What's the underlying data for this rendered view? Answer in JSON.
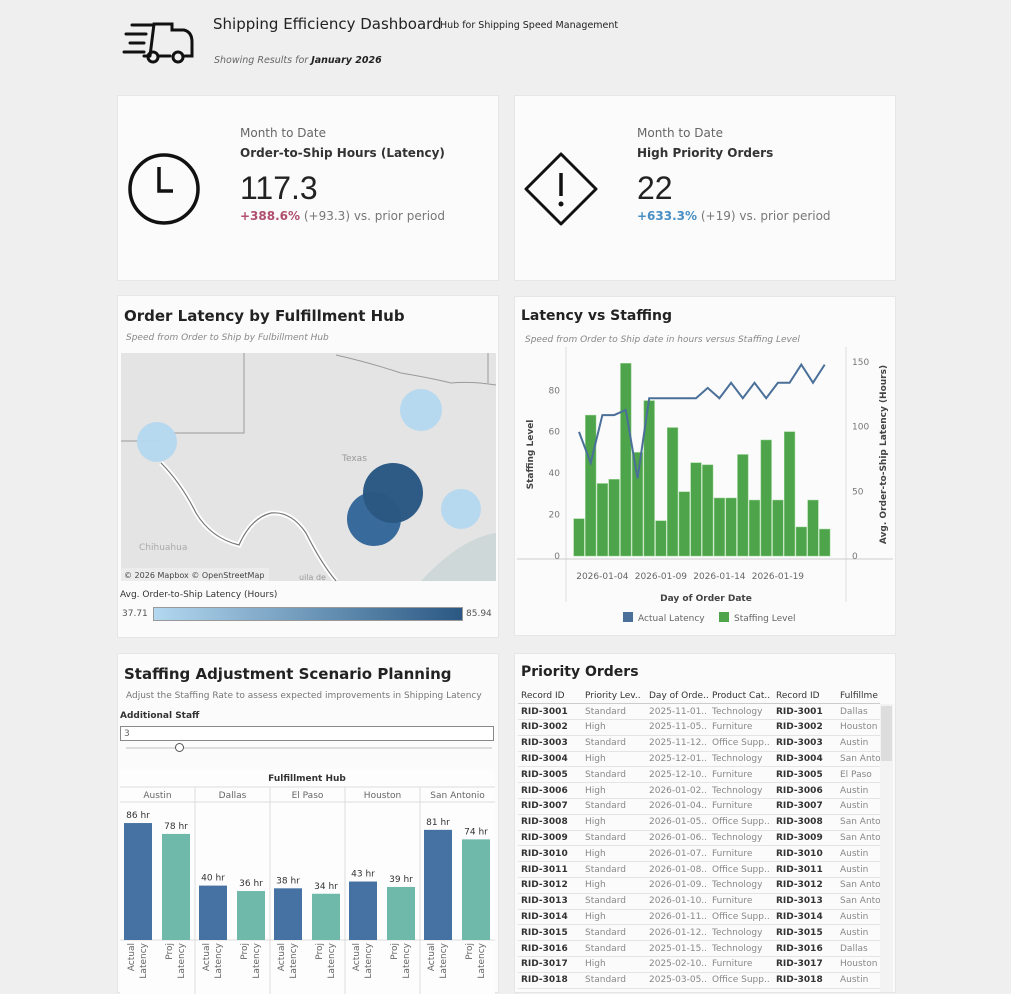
{
  "header": {
    "title": "Shipping Efficiency Dashboard",
    "subtitle": "Hub for Shipping Speed Management",
    "showing_prefix": "Showing Results for ",
    "showing_period": "January 2026",
    "icon": "delivery-truck-icon"
  },
  "kpis": [
    {
      "icon": "clock-icon",
      "caption": "Month to Date",
      "name": "Order-to-Ship Hours (Latency)",
      "value": "117.3",
      "delta_pct": "+388.6%",
      "delta_rest": " (+93.3) vs. prior period",
      "delta_color": "#b0506e"
    },
    {
      "icon": "warning-diamond-icon",
      "caption": "Month to Date",
      "name": "High Priority Orders",
      "value": "22",
      "delta_pct": "+633.3%",
      "delta_rest": " (+19) vs. prior period",
      "delta_color": "#4a8fc4"
    }
  ],
  "map": {
    "title": "Order Latency by Fulfillment Hub",
    "subtitle": "Speed from Order to Ship by Fulbillment Hub",
    "state_label": "Texas",
    "region_label": "Chihuahua",
    "region_label2": "uila de",
    "attribution": "© 2026 Mapbox  © OpenStreetMap",
    "legend_title": "Avg. Order-to-Ship Latency (Hours)",
    "legend_min": "37.71",
    "legend_max": "85.94",
    "color_low": "#b3d8f0",
    "color_high": "#2a5883"
  },
  "combo": {
    "title": "Latency vs Staffing",
    "subtitle": "Speed from Order to Ship date in hours versus Staffing Level"
  },
  "chart_data": [
    {
      "type": "bar+line",
      "xlabel": "Day of Order Date",
      "ylabel": "Staffing Level",
      "y2label": "Avg. Order-to-Ship Latency (Hours)",
      "ylim": [
        0,
        98
      ],
      "y2lim": [
        0,
        157
      ],
      "yticks": [
        0,
        20,
        40,
        60,
        80
      ],
      "y2ticks": [
        0,
        50,
        100,
        150
      ],
      "x_tick_labels": [
        "2026-01-04",
        "2026-01-09",
        "2026-01-14",
        "2026-01-19"
      ],
      "x": [
        "2026-01-02",
        "2026-01-03",
        "2026-01-04",
        "2026-01-05",
        "2026-01-06",
        "2026-01-07",
        "2026-01-08",
        "2026-01-09",
        "2026-01-10",
        "2026-01-11",
        "2026-01-12",
        "2026-01-13",
        "2026-01-14",
        "2026-01-15",
        "2026-01-16",
        "2026-01-17",
        "2026-01-18",
        "2026-01-19",
        "2026-01-20",
        "2026-01-21",
        "2026-01-22",
        "2026-01-23"
      ],
      "series": [
        {
          "name": "Staffing Level",
          "type": "bar",
          "color": "#4ea44a",
          "values": [
            18,
            68,
            35,
            37,
            93,
            50,
            75,
            17,
            62,
            31,
            45,
            44,
            28,
            28,
            49,
            27,
            56,
            27,
            60,
            14,
            27,
            13
          ]
        },
        {
          "name": "Actual Latency",
          "type": "line",
          "color": "#4a6f98",
          "values": [
            96,
            72,
            109,
            109,
            113,
            60,
            122,
            122,
            122,
            122,
            122,
            130,
            122,
            134,
            122,
            134,
            122,
            134,
            134,
            148,
            134,
            148
          ]
        }
      ],
      "legend": "bottom",
      "grid": false
    },
    {
      "type": "bar",
      "title": "Fulfillment Hub",
      "categories": [
        "Austin",
        "Dallas",
        "El Paso",
        "Houston",
        "San Antonio"
      ],
      "bar_labels": [
        "Actual Latency",
        "Proj Latency"
      ],
      "series": [
        {
          "name": "Actual Latency",
          "color": "#4672a3",
          "values": [
            86,
            40,
            38,
            43,
            81
          ]
        },
        {
          "name": "Proj Latency",
          "color": "#6fb9ab",
          "values": [
            78,
            36,
            34,
            39,
            74
          ]
        }
      ],
      "unit": "hr"
    }
  ],
  "scenario": {
    "title": "Staffing Adjustment Scenario Planning",
    "subtitle": "Adjust the Staffing Rate to assess expected improvements in Shipping Latency",
    "param_label": "Additional Staff",
    "param_value": "3",
    "slider_fraction": 0.16
  },
  "table": {
    "title": "Priority Orders",
    "columns": [
      "Record ID",
      "Priority Lev..",
      "Day of Orde..",
      "Product Cat..",
      "Record ID",
      "Fulfillme"
    ],
    "rows": [
      [
        "RID-3001",
        "Standard",
        "2025-11-01..",
        "Technology",
        "RID-3001",
        "Dallas"
      ],
      [
        "RID-3002",
        "High",
        "2025-11-05..",
        "Furniture",
        "RID-3002",
        "Houston"
      ],
      [
        "RID-3003",
        "Standard",
        "2025-11-12..",
        "Office Supp..",
        "RID-3003",
        "Austin"
      ],
      [
        "RID-3004",
        "High",
        "2025-12-01..",
        "Technology",
        "RID-3004",
        "San Anto"
      ],
      [
        "RID-3005",
        "Standard",
        "2025-12-10..",
        "Furniture",
        "RID-3005",
        "El Paso"
      ],
      [
        "RID-3006",
        "High",
        "2026-01-02..",
        "Technology",
        "RID-3006",
        "Austin"
      ],
      [
        "RID-3007",
        "Standard",
        "2026-01-04..",
        "Furniture",
        "RID-3007",
        "Austin"
      ],
      [
        "RID-3008",
        "High",
        "2026-01-05..",
        "Office Supp..",
        "RID-3008",
        "San Anto"
      ],
      [
        "RID-3009",
        "Standard",
        "2026-01-06..",
        "Technology",
        "RID-3009",
        "San Anto"
      ],
      [
        "RID-3010",
        "High",
        "2026-01-07..",
        "Furniture",
        "RID-3010",
        "Austin"
      ],
      [
        "RID-3011",
        "Standard",
        "2026-01-08..",
        "Office Supp..",
        "RID-3011",
        "Austin"
      ],
      [
        "RID-3012",
        "High",
        "2026-01-09..",
        "Technology",
        "RID-3012",
        "San Anto"
      ],
      [
        "RID-3013",
        "Standard",
        "2026-01-10..",
        "Furniture",
        "RID-3013",
        "San Anto"
      ],
      [
        "RID-3014",
        "High",
        "2026-01-11..",
        "Office Supp..",
        "RID-3014",
        "Austin"
      ],
      [
        "RID-3015",
        "Standard",
        "2026-01-12..",
        "Technology",
        "RID-3015",
        "Austin"
      ],
      [
        "RID-3016",
        "Standard",
        "2025-01-15..",
        "Technology",
        "RID-3016",
        "Dallas"
      ],
      [
        "RID-3017",
        "High",
        "2025-02-10..",
        "Furniture",
        "RID-3017",
        "Houston"
      ],
      [
        "RID-3018",
        "Standard",
        "2025-03-05..",
        "Office Supp..",
        "RID-3018",
        "Austin"
      ]
    ]
  }
}
